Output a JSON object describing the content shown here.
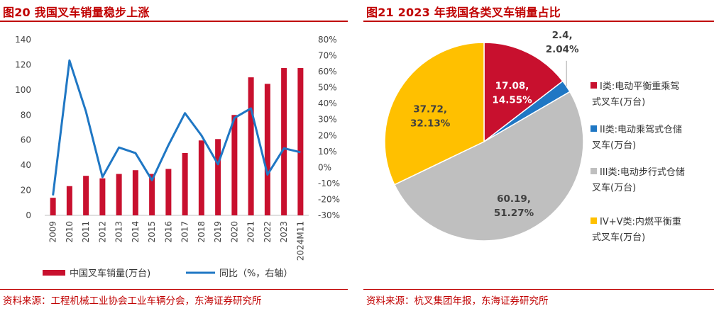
{
  "left_panel": {
    "title": "图20  我国叉车销量稳步上涨",
    "source": "资料来源：工程机械工业协会工业车辆分会，东海证券研究所"
  },
  "right_panel": {
    "title": "图21  2023 年我国各类叉车销量占比",
    "source": "资料来源：杭叉集团年报，东海证券研究所"
  },
  "colors": {
    "red": "#c8102e",
    "blue": "#1f77c4",
    "gray": "#bfbfbf",
    "yellow": "#ffc000",
    "title": "#c00000"
  },
  "chart_data": [
    {
      "type": "bar+line",
      "categories": [
        "2009",
        "2010",
        "2011",
        "2012",
        "2013",
        "2014",
        "2015",
        "2016",
        "2017",
        "2018",
        "2019",
        "2020",
        "2021",
        "2022",
        "2023",
        "2024M11"
      ],
      "series": [
        {
          "name": "中国叉车销量(万台)",
          "type": "bar",
          "axis": "left",
          "values": [
            14,
            23.3,
            31.5,
            29.5,
            33,
            36,
            33,
            37,
            49.7,
            59.7,
            60.8,
            80,
            110,
            104.8,
            117.4,
            117.4
          ]
        },
        {
          "name": "同比（%，右轴）",
          "type": "line",
          "axis": "right",
          "values": [
            -17.5,
            67,
            35,
            -6,
            12.5,
            9,
            -8,
            14,
            34,
            20,
            2,
            31,
            37,
            -4.5,
            12,
            9.5
          ]
        }
      ],
      "left_axis": {
        "ylim": [
          0,
          140
        ],
        "ticks": [
          "0",
          "20",
          "40",
          "60",
          "80",
          "100",
          "120",
          "140"
        ]
      },
      "right_axis": {
        "ylim": [
          -30,
          80
        ],
        "ticks": [
          "-30%",
          "-20%",
          "-10%",
          "0%",
          "10%",
          "20%",
          "30%",
          "40%",
          "50%",
          "60%",
          "70%",
          "80%"
        ]
      },
      "legend": {
        "bar": "中国叉车销量(万台)",
        "line": "同比（%，右轴）"
      }
    },
    {
      "type": "pie",
      "slices": [
        {
          "name": "I类:电动平衡重乘驾式叉车(万台)",
          "legend_lines": [
            "I类:电动平衡重乘驾",
            "式叉车(万台)"
          ],
          "value": 17.08,
          "percent": "14.55%",
          "label1": "17.08,",
          "label2": "14.55%",
          "color": "#c8102e",
          "text_color": "#ffffff"
        },
        {
          "name": "II类:电动乘驾式仓储叉车(万台)",
          "legend_lines": [
            "II类:电动乘驾式仓储",
            "叉车(万台)"
          ],
          "value": 2.4,
          "percent": "2.04%",
          "label1": "2.4,",
          "label2": "2.04%",
          "color": "#1f77c4",
          "text_color": "#404040"
        },
        {
          "name": "III类:电动步行式仓储叉车(万台)",
          "legend_lines": [
            "III类:电动步行式仓储",
            "叉车(万台)"
          ],
          "value": 60.19,
          "percent": "51.27%",
          "label1": "60.19,",
          "label2": "51.27%",
          "color": "#bfbfbf",
          "text_color": "#404040"
        },
        {
          "name": "IV+V类:内燃平衡重式叉车(万台)",
          "legend_lines": [
            "IV+V类:内燃平衡重",
            "式叉车(万台)"
          ],
          "value": 37.72,
          "percent": "32.13%",
          "label1": "37.72,",
          "label2": "32.13%",
          "color": "#ffc000",
          "text_color": "#404040"
        }
      ]
    }
  ]
}
